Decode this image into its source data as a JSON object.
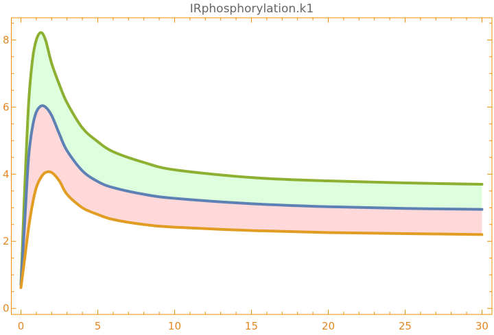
{
  "chart_data": {
    "type": "line",
    "title": "IRphosphorylation.k1",
    "xlabel": "",
    "ylabel": "",
    "xlim": [
      -0.625,
      30.65
    ],
    "ylim": [
      -0.18,
      8.66
    ],
    "xticks": [
      0,
      5,
      10,
      15,
      20,
      25,
      30
    ],
    "yticks": [
      0,
      2,
      4,
      6,
      8
    ],
    "grid": false,
    "axis_color": "#F08C00",
    "x": [
      0,
      0.25,
      0.5,
      0.75,
      1,
      1.3,
      1.6,
      2,
      2.5,
      3,
      4,
      5,
      6,
      8,
      10,
      15,
      20,
      25,
      30
    ],
    "series": [
      {
        "color": "#8DB032",
        "values": [
          0.7,
          3.6,
          6.1,
          7.4,
          8.0,
          8.22,
          8.0,
          7.3,
          6.67,
          6.13,
          5.38,
          4.97,
          4.67,
          4.35,
          4.13,
          3.9,
          3.8,
          3.74,
          3.7
        ]
      },
      {
        "color": "#5E81B5",
        "values": [
          0.7,
          2.6,
          4.5,
          5.4,
          5.85,
          6.03,
          6.0,
          5.75,
          5.2,
          4.7,
          4.1,
          3.78,
          3.6,
          3.4,
          3.28,
          3.12,
          3.03,
          2.98,
          2.95
        ]
      },
      {
        "color": "#E19C24",
        "values": [
          0.62,
          1.5,
          2.4,
          3.1,
          3.6,
          3.9,
          4.05,
          4.05,
          3.8,
          3.4,
          3.0,
          2.8,
          2.65,
          2.5,
          2.42,
          2.32,
          2.26,
          2.23,
          2.2
        ]
      }
    ],
    "fills": [
      {
        "between": [
          0,
          1
        ],
        "color": "#DDFFDD"
      },
      {
        "between": [
          1,
          2
        ],
        "color": "#FFD9D9"
      }
    ]
  }
}
